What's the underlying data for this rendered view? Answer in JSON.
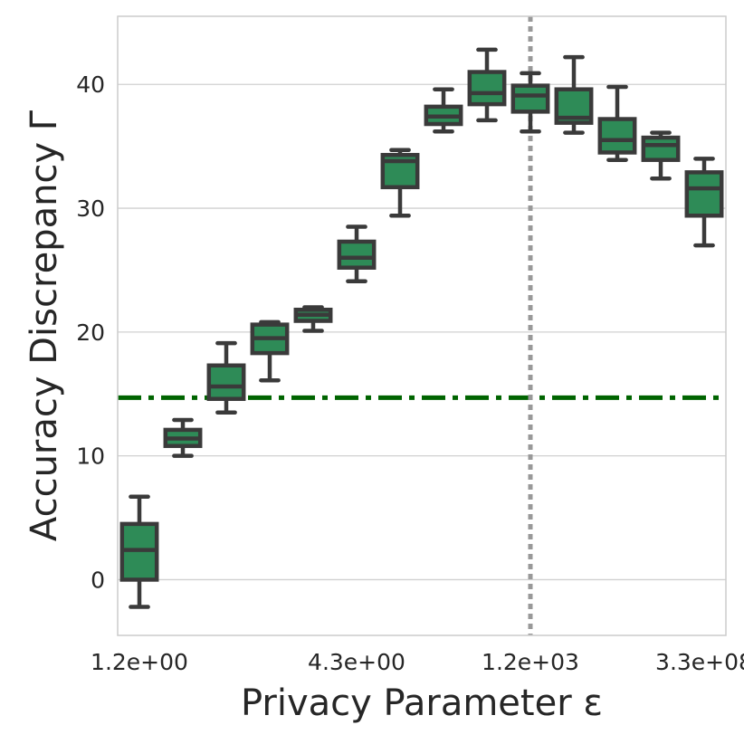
{
  "chart_data": {
    "type": "box",
    "title": "",
    "xlabel": "Privacy Parameter ε",
    "ylabel": "Accuracy Discrepancy Γ",
    "ylim": [
      -4.5,
      45.5
    ],
    "yticks": [
      0,
      10,
      20,
      30,
      40
    ],
    "xtick_labels": [
      {
        "index": 0,
        "label": "1.2e+00"
      },
      {
        "index": 5,
        "label": "4.3e+00"
      },
      {
        "index": 9,
        "label": "1.2e+03"
      },
      {
        "index": 13,
        "label": "3.3e+08"
      }
    ],
    "grid": true,
    "box_color": "#2e8b57",
    "edge_color": "#3a3a3a",
    "boxes": [
      {
        "index": 0,
        "min": -2.2,
        "q1": 0.0,
        "median": 2.4,
        "q3": 4.5,
        "max": 6.7
      },
      {
        "index": 1,
        "min": 10.0,
        "q1": 10.8,
        "median": 11.4,
        "q3": 12.1,
        "max": 12.9
      },
      {
        "index": 2,
        "min": 13.5,
        "q1": 14.6,
        "median": 15.6,
        "q3": 17.3,
        "max": 19.1
      },
      {
        "index": 3,
        "min": 16.1,
        "q1": 18.3,
        "median": 19.5,
        "q3": 20.6,
        "max": 20.8
      },
      {
        "index": 4,
        "min": 20.1,
        "q1": 20.9,
        "median": 21.4,
        "q3": 21.8,
        "max": 22.0
      },
      {
        "index": 5,
        "min": 24.1,
        "q1": 25.2,
        "median": 26.0,
        "q3": 27.3,
        "max": 28.5
      },
      {
        "index": 6,
        "min": 29.4,
        "q1": 31.7,
        "median": 33.8,
        "q3": 34.3,
        "max": 34.7
      },
      {
        "index": 7,
        "min": 36.2,
        "q1": 36.8,
        "median": 37.4,
        "q3": 38.2,
        "max": 39.6
      },
      {
        "index": 8,
        "min": 37.1,
        "q1": 38.4,
        "median": 39.3,
        "q3": 41.0,
        "max": 42.8
      },
      {
        "index": 9,
        "min": 36.2,
        "q1": 37.8,
        "median": 39.1,
        "q3": 39.9,
        "max": 40.9
      },
      {
        "index": 10,
        "min": 36.1,
        "q1": 36.9,
        "median": 37.3,
        "q3": 39.6,
        "max": 42.2
      },
      {
        "index": 11,
        "min": 33.9,
        "q1": 34.5,
        "median": 35.5,
        "q3": 37.2,
        "max": 39.8
      },
      {
        "index": 12,
        "min": 32.4,
        "q1": 33.9,
        "median": 35.1,
        "q3": 35.7,
        "max": 36.1
      },
      {
        "index": 13,
        "min": 27.0,
        "q1": 29.4,
        "median": 31.6,
        "q3": 32.9,
        "max": 34.0
      }
    ],
    "hline": {
      "y": 14.7,
      "style": "dashdot",
      "color": "#006400"
    },
    "vline": {
      "x_index": 9,
      "style": "dotted",
      "color": "#999999"
    }
  }
}
